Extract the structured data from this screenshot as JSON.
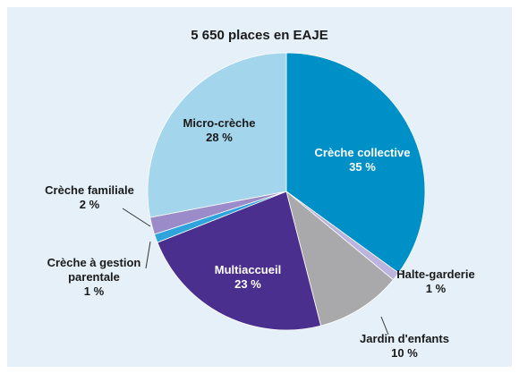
{
  "chart_data": {
    "type": "pie",
    "title": "5 650 places en EAJE",
    "categories": [
      "Crèche collective",
      "Halte-garderie",
      "Jardin d'enfants",
      "Multiaccueil",
      "Crèche à gestion parentale",
      "Crèche familiale",
      "Micro-crèche"
    ],
    "values": [
      35,
      1,
      10,
      23,
      1,
      2,
      28
    ],
    "value_labels": [
      "35 %",
      "1 %",
      "10 %",
      "23 %",
      "1 %",
      "2 %",
      "28 %"
    ],
    "colors": [
      "#0090c8",
      "#bcb3de",
      "#a9a9ab",
      "#4b2f8e",
      "#2fa3dc",
      "#9c8bc9",
      "#a3d5ec"
    ]
  }
}
